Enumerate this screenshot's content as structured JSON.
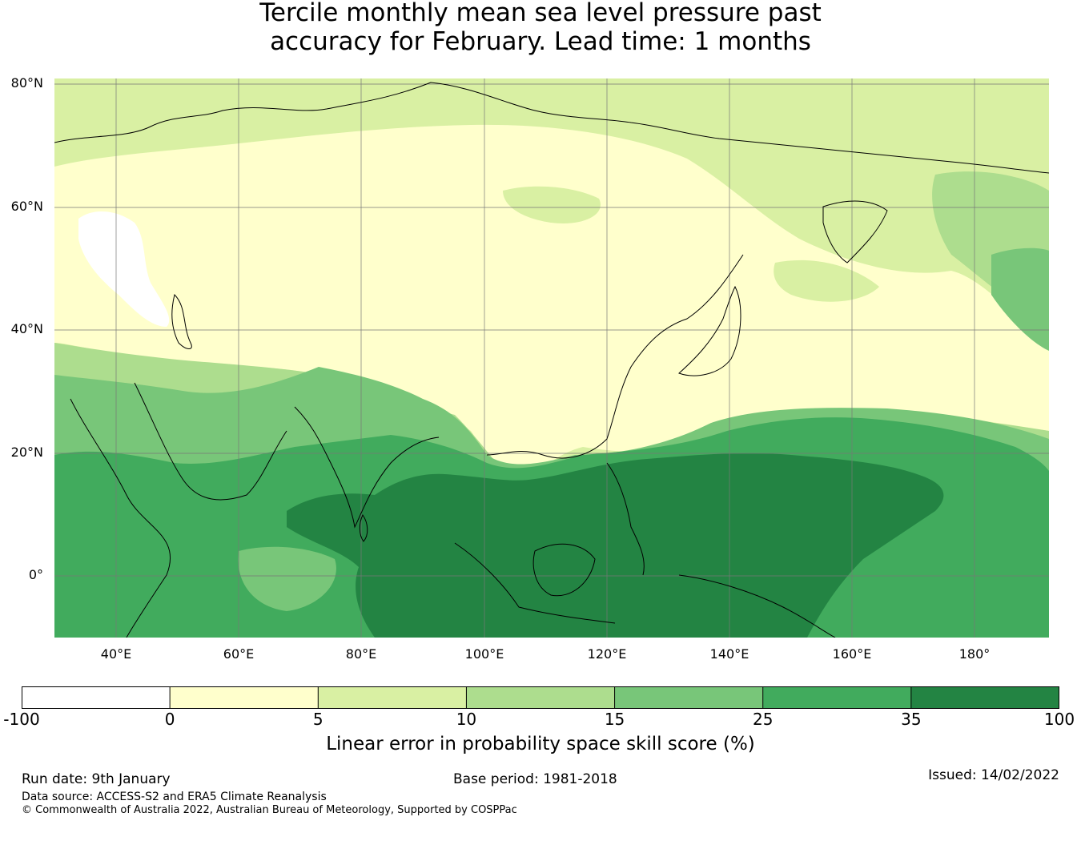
{
  "title": {
    "line1": "Tercile monthly mean sea level pressure past",
    "line2": "accuracy for February. Lead time: 1 months"
  },
  "map": {
    "lat_labels": [
      "80°N",
      "60°N",
      "40°N",
      "20°N",
      "0°"
    ],
    "lon_labels": [
      "40°E",
      "60°E",
      "80°E",
      "100°E",
      "120°E",
      "140°E",
      "160°E",
      "180°"
    ],
    "extent": {
      "lon_min": 30,
      "lon_max": 192,
      "lat_min": -10,
      "lat_max": 81
    },
    "regions": [
      {
        "name": "northern-band",
        "score_class": "5-10"
      },
      {
        "name": "central-asia-north-pacific",
        "score_class": "0-5"
      },
      {
        "name": "caspian-scandinavia",
        "score_class": "-100-0"
      },
      {
        "name": "south-asia-arabia",
        "score_class": "15-25"
      },
      {
        "name": "indian-ocean-west-pacific",
        "score_class": "25-35"
      },
      {
        "name": "maritime-continent-tropical-pacific",
        "score_class": "35-100"
      }
    ]
  },
  "colorbar": {
    "ticks": [
      "-100",
      "0",
      "5",
      "10",
      "15",
      "25",
      "35",
      "100"
    ],
    "colors": [
      "#ffffff",
      "#ffffcc",
      "#d9f0a3",
      "#addd8e",
      "#78c679",
      "#41ab5d",
      "#238443"
    ],
    "label": "Linear error in probability space skill score (%)"
  },
  "footer": {
    "run_date": "Run date: 9th January",
    "base_period": "Base period: 1981-2018",
    "issued": "Issued: 14/02/2022",
    "data_source": "Data source: ACCESS-S2 and ERA5 Climate Reanalysis",
    "copyright": "© Commonwealth of Australia 2022, Australian Bureau of Meteorology, Supported by COSPPac"
  },
  "colors": {
    "grid": "#777777",
    "coastline": "#000000"
  }
}
